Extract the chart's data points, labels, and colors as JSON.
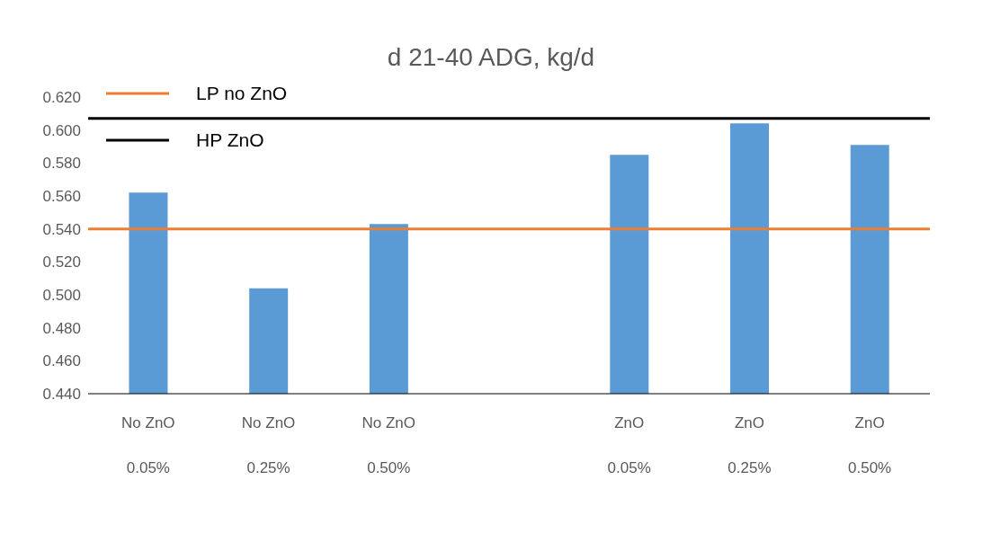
{
  "chart_data": {
    "type": "bar",
    "title": "d 21-40 ADG, kg/d",
    "categories": [
      "No ZnO\n0.05%",
      "No ZnO\n0.25%",
      "No ZnO\n0.50%",
      null,
      "ZnO\n0.05%",
      "ZnO\n0.25%",
      "ZnO\n0.50%"
    ],
    "values": [
      0.562,
      0.504,
      0.543,
      null,
      0.585,
      0.604,
      0.591
    ],
    "color": "#5b9bd5",
    "ylim": [
      0.44,
      0.62
    ],
    "yticks": [
      {
        "value": 0.44,
        "label": "0.440"
      },
      {
        "value": 0.46,
        "label": "0.460"
      },
      {
        "value": 0.48,
        "label": "0.480"
      },
      {
        "value": 0.5,
        "label": "0.500"
      },
      {
        "value": 0.52,
        "label": "0.520"
      },
      {
        "value": 0.54,
        "label": "0.540"
      },
      {
        "value": 0.56,
        "label": "0.560"
      },
      {
        "value": 0.58,
        "label": "0.580"
      },
      {
        "value": 0.6,
        "label": "0.600"
      },
      {
        "value": 0.62,
        "label": "0.620"
      }
    ],
    "ref_lines": [
      {
        "axis": "y",
        "value": 0.54,
        "label": "LP no ZnO",
        "color": "#ed7d31"
      },
      {
        "axis": "y",
        "value": 0.607,
        "label": "HP ZnO",
        "color": "#000000"
      }
    ],
    "grid": false,
    "legend": "top left"
  }
}
